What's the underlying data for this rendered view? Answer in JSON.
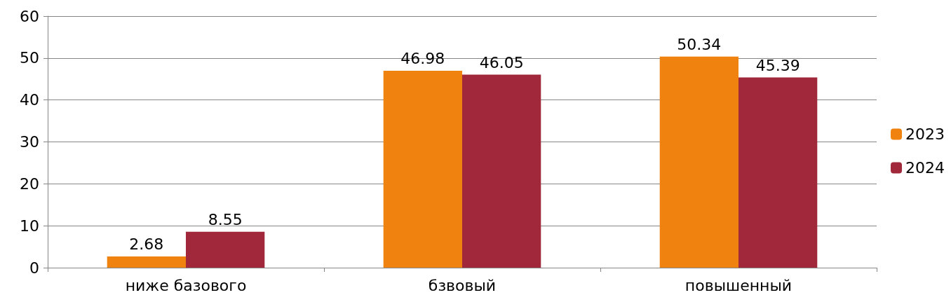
{
  "chart_data": {
    "type": "bar",
    "categories": [
      "ниже базового",
      "бзвовый",
      "повышенный"
    ],
    "series": [
      {
        "name": "2023",
        "color": "#f0820f",
        "values": [
          2.68,
          46.98,
          50.34
        ]
      },
      {
        "name": "2024",
        "color": "#a0283a",
        "values": [
          8.55,
          46.05,
          45.39
        ]
      }
    ],
    "ylim": [
      0,
      60
    ],
    "yticks": [
      0,
      10,
      20,
      30,
      40,
      50,
      60
    ],
    "grid": "y",
    "legend": "right",
    "data_labels": true
  }
}
